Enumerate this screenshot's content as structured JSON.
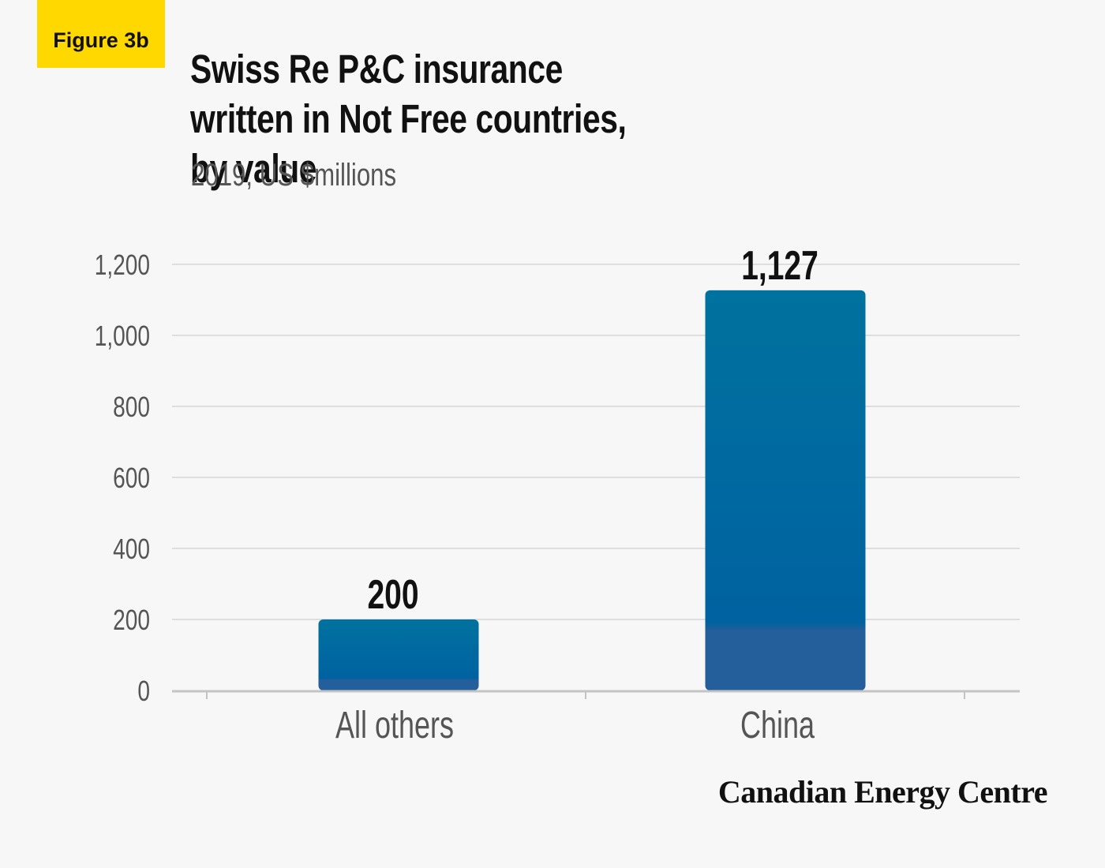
{
  "badge": "Figure 3b",
  "title": "Swiss Re P&C insurance written in Not Free countries, by value",
  "subtitle": "2019, US $millions",
  "brand": "Canadian Energy Centre",
  "colors": {
    "bar_top": "#00729f",
    "bar_bottom": "#245e9b",
    "badge": "#ffd800",
    "background": "#f7f7f7"
  },
  "chart_data": {
    "type": "bar",
    "title": "Swiss Re P&C insurance written in Not Free countries, by value",
    "subtitle": "2019, US $millions",
    "categories": [
      "All others",
      "China"
    ],
    "values": [
      200,
      1127
    ],
    "value_labels": [
      "200",
      "1,127"
    ],
    "yticks": [
      0,
      200,
      400,
      600,
      800,
      1000,
      1200
    ],
    "ytick_labels": [
      "0",
      "200",
      "400",
      "600",
      "800",
      "1,000",
      "1,200"
    ],
    "ylim": [
      0,
      1200
    ],
    "xlabel": "",
    "ylabel": "",
    "grid": true,
    "legend": "none"
  }
}
